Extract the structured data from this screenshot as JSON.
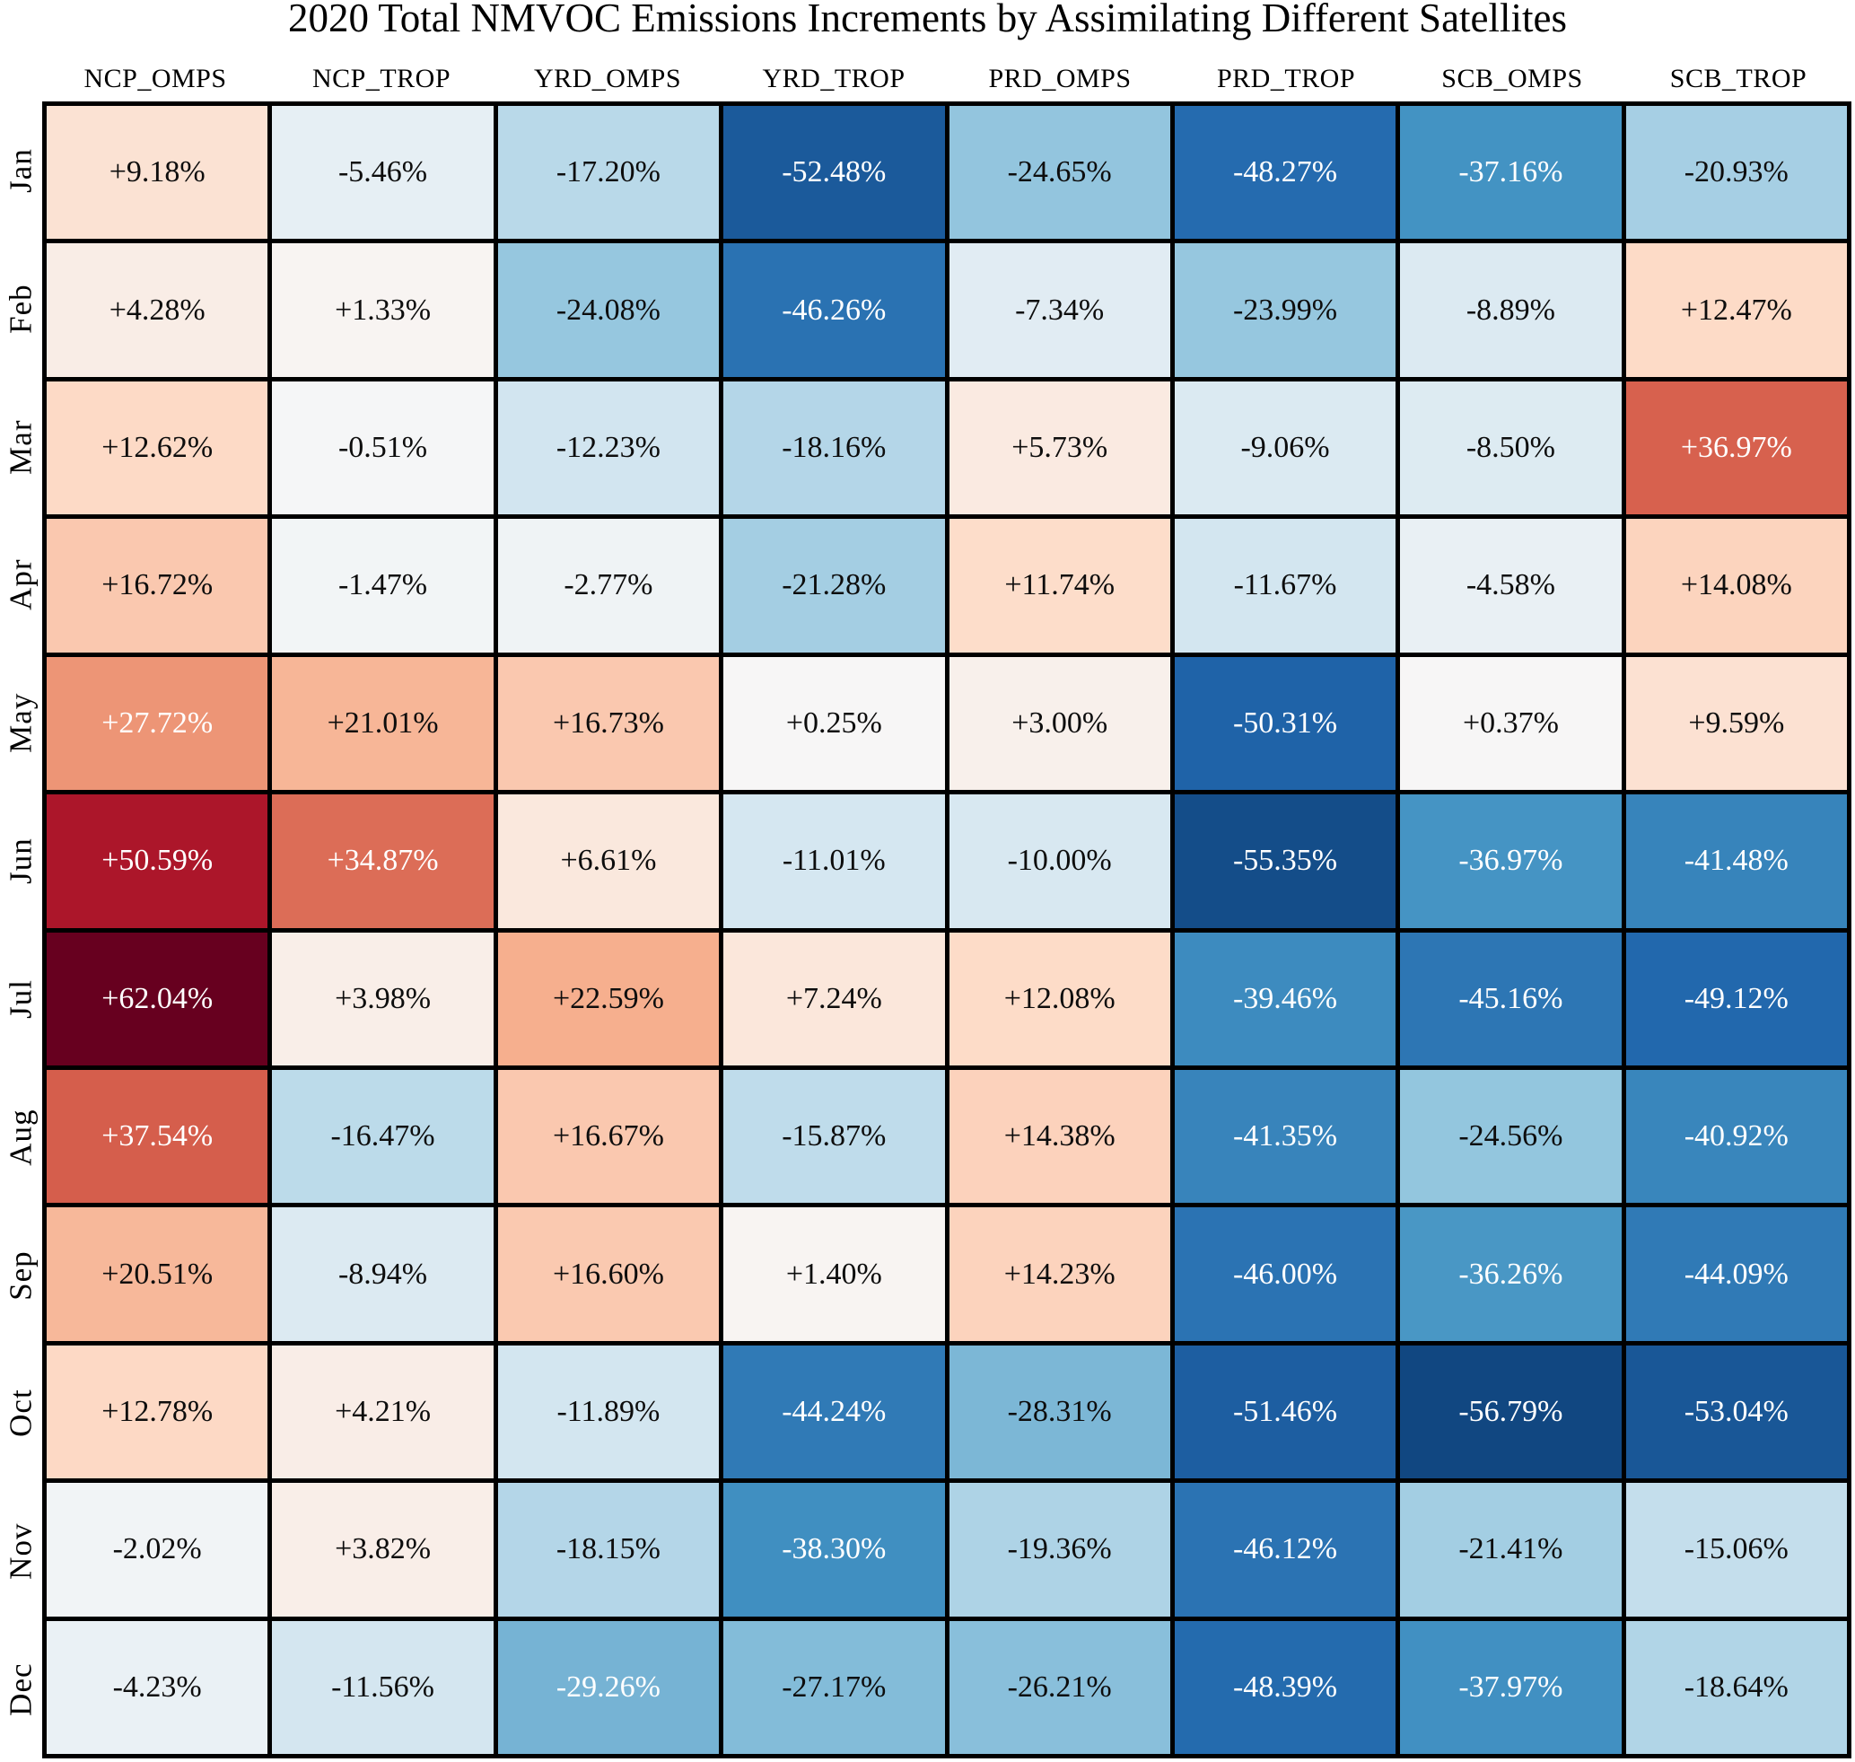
{
  "chart_data": {
    "type": "heatmap",
    "title": "2020 Total NMVOC Emissions Increments by Assimilating Different Satellites",
    "columns": [
      "NCP_OMPS",
      "NCP_TROP",
      "YRD_OMPS",
      "YRD_TROP",
      "PRD_OMPS",
      "PRD_TROP",
      "SCB_OMPS",
      "SCB_TROP"
    ],
    "rows": [
      "Jan",
      "Feb",
      "Mar",
      "Apr",
      "May",
      "Jun",
      "Jul",
      "Aug",
      "Sep",
      "Oct",
      "Nov",
      "Dec"
    ],
    "values_percent": [
      [
        9.18,
        -5.46,
        -17.2,
        -52.48,
        -24.65,
        -48.27,
        -37.16,
        -20.93
      ],
      [
        4.28,
        1.33,
        -24.08,
        -46.26,
        -7.34,
        -23.99,
        -8.89,
        12.47
      ],
      [
        12.62,
        -0.51,
        -12.23,
        -18.16,
        5.73,
        -9.06,
        -8.5,
        36.97
      ],
      [
        16.72,
        -1.47,
        -2.77,
        -21.28,
        11.74,
        -11.67,
        -4.58,
        14.08
      ],
      [
        27.72,
        21.01,
        16.73,
        0.25,
        3.0,
        -50.31,
        0.37,
        9.59
      ],
      [
        50.59,
        34.87,
        6.61,
        -11.01,
        -10.0,
        -55.35,
        -36.97,
        -41.48
      ],
      [
        62.04,
        3.98,
        22.59,
        7.24,
        12.08,
        -39.46,
        -45.16,
        -49.12
      ],
      [
        37.54,
        -16.47,
        16.67,
        -15.87,
        14.38,
        -41.35,
        -24.56,
        -40.92
      ],
      [
        20.51,
        -8.94,
        16.6,
        1.4,
        14.23,
        -46.0,
        -36.26,
        -44.09
      ],
      [
        12.78,
        4.21,
        -11.89,
        -44.24,
        -28.31,
        -51.46,
        -56.79,
        -53.04
      ],
      [
        -2.02,
        3.82,
        -18.15,
        -38.3,
        -19.36,
        -46.12,
        -21.41,
        -15.06
      ],
      [
        -4.23,
        -11.56,
        -29.26,
        -27.17,
        -26.21,
        -48.39,
        -37.97,
        -18.64
      ]
    ],
    "cell_labels": [
      [
        "+9.18%",
        "-5.46%",
        "-17.20%",
        "-52.48%",
        "-24.65%",
        "-48.27%",
        "-37.16%",
        "-20.93%"
      ],
      [
        "+4.28%",
        "+1.33%",
        "-24.08%",
        "-46.26%",
        "-7.34%",
        "-23.99%",
        "-8.89%",
        "+12.47%"
      ],
      [
        "+12.62%",
        "-0.51%",
        "-12.23%",
        "-18.16%",
        "+5.73%",
        "-9.06%",
        "-8.50%",
        "+36.97%"
      ],
      [
        "+16.72%",
        "-1.47%",
        "-2.77%",
        "-21.28%",
        "+11.74%",
        "-11.67%",
        "-4.58%",
        "+14.08%"
      ],
      [
        "+27.72%",
        "+21.01%",
        "+16.73%",
        "+0.25%",
        "+3.00%",
        "-50.31%",
        "+0.37%",
        "+9.59%"
      ],
      [
        "+50.59%",
        "+34.87%",
        "+6.61%",
        "-11.01%",
        "-10.00%",
        "-55.35%",
        "-36.97%",
        "-41.48%"
      ],
      [
        "+62.04%",
        "+3.98%",
        "+22.59%",
        "+7.24%",
        "+12.08%",
        "-39.46%",
        "-45.16%",
        "-49.12%"
      ],
      [
        "+37.54%",
        "-16.47%",
        "+16.67%",
        "-15.87%",
        "+14.38%",
        "-41.35%",
        "-24.56%",
        "-40.92%"
      ],
      [
        "+20.51%",
        "-8.94%",
        "+16.60%",
        "+1.40%",
        "+14.23%",
        "-46.00%",
        "-36.26%",
        "-44.09%"
      ],
      [
        "+12.78%",
        "+4.21%",
        "-11.89%",
        "-44.24%",
        "-28.31%",
        "-51.46%",
        "-56.79%",
        "-53.04%"
      ],
      [
        "-2.02%",
        "+3.82%",
        "-18.15%",
        "-38.30%",
        "-19.36%",
        "-46.12%",
        "-21.41%",
        "-15.06%"
      ],
      [
        "-4.23%",
        "-11.56%",
        "-29.26%",
        "-27.17%",
        "-26.21%",
        "-48.39%",
        "-37.97%",
        "-18.64%"
      ]
    ],
    "colormap": {
      "name": "RdBu_r",
      "anchors": [
        "#053061",
        "#2166ac",
        "#4393c3",
        "#92c5de",
        "#d1e5f0",
        "#f7f7f7",
        "#fddbc7",
        "#f4a582",
        "#d6604d",
        "#b2182b",
        "#67001f"
      ],
      "vmin": -62.04,
      "vmax": 62.04
    },
    "text_color_rule": {
      "white_if_above": 25,
      "white_if_below": -28.8,
      "dark_text": "#0d0d0d",
      "light_text": "#ffffff"
    },
    "layout": {
      "gridline_color": "#000000",
      "background": "#ffffff",
      "legend": "none",
      "grid_on": true
    }
  }
}
